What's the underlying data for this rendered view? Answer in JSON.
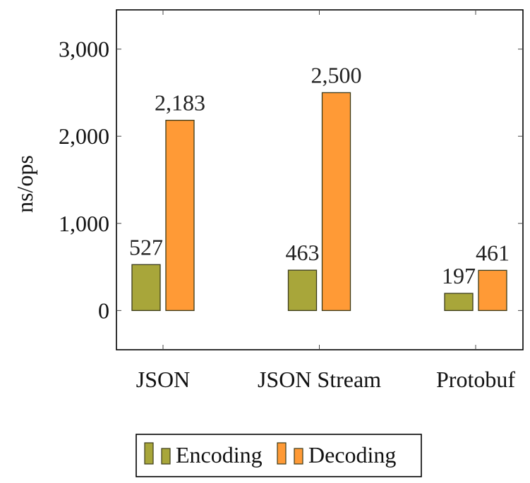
{
  "chart_data": {
    "type": "bar",
    "categories": [
      "JSON",
      "JSON Stream",
      "Protobuf"
    ],
    "series": [
      {
        "name": "Encoding",
        "values": [
          527,
          463,
          197
        ],
        "color": "#a8a63a"
      },
      {
        "name": "Decoding",
        "values": [
          2183,
          2500,
          461
        ],
        "color": "#ff9a36"
      }
    ],
    "data_labels": {
      "Encoding": [
        "527",
        "463",
        "197"
      ],
      "Decoding": [
        "2,183",
        "2,500",
        "461"
      ]
    },
    "title": "",
    "xlabel": "",
    "ylabel": "ns/ops",
    "ylim": [
      -450,
      3450
    ],
    "yticks": [
      0,
      1000,
      2000,
      3000
    ],
    "ytick_labels": [
      "0",
      "1,000",
      "2,000",
      "3,000"
    ],
    "grid": false,
    "legend_position": "bottom-center"
  }
}
